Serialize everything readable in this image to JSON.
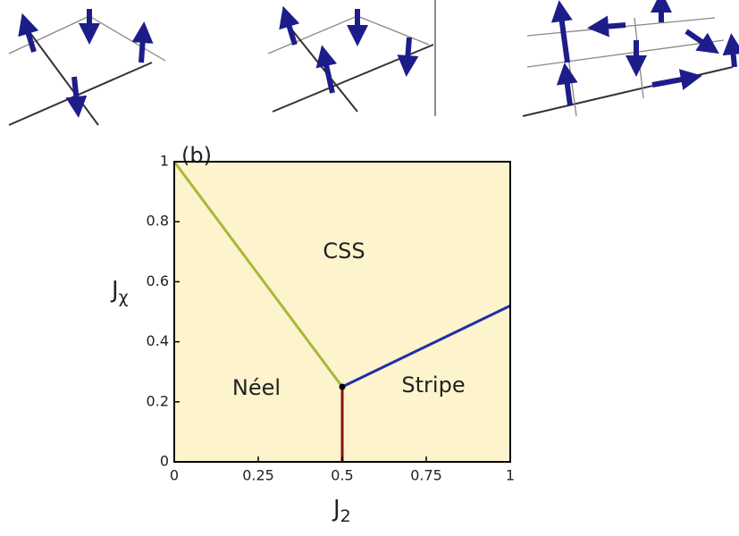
{
  "chart_data": {
    "type": "phase-diagram",
    "panel_label": "(b)",
    "xlabel": "J",
    "xlabel_subscript": "2",
    "ylabel": "J",
    "ylabel_subscript": "χ",
    "xlim": [
      0,
      1
    ],
    "ylim": [
      0,
      1
    ],
    "xticks": [
      0,
      0.25,
      0.5,
      0.75,
      1
    ],
    "yticks": [
      0,
      0.2,
      0.4,
      0.6,
      0.8,
      1
    ],
    "background": "#fdf3cc",
    "boundaries": [
      {
        "color": "#a8b83a",
        "x": [
          0,
          0.5
        ],
        "values": [
          1,
          0.25
        ]
      },
      {
        "color": "#1f2fa8",
        "x": [
          0.5,
          1
        ],
        "values": [
          0.25,
          0.52
        ]
      },
      {
        "color": "#8b1010",
        "x": [
          0.5,
          0.5
        ],
        "values": [
          0,
          0.25
        ]
      }
    ],
    "points": {
      "color": "#000000",
      "x": [
        0.5
      ],
      "values": [
        0.25
      ]
    },
    "regions": [
      "CSS",
      "Néel",
      "Stripe"
    ]
  }
}
